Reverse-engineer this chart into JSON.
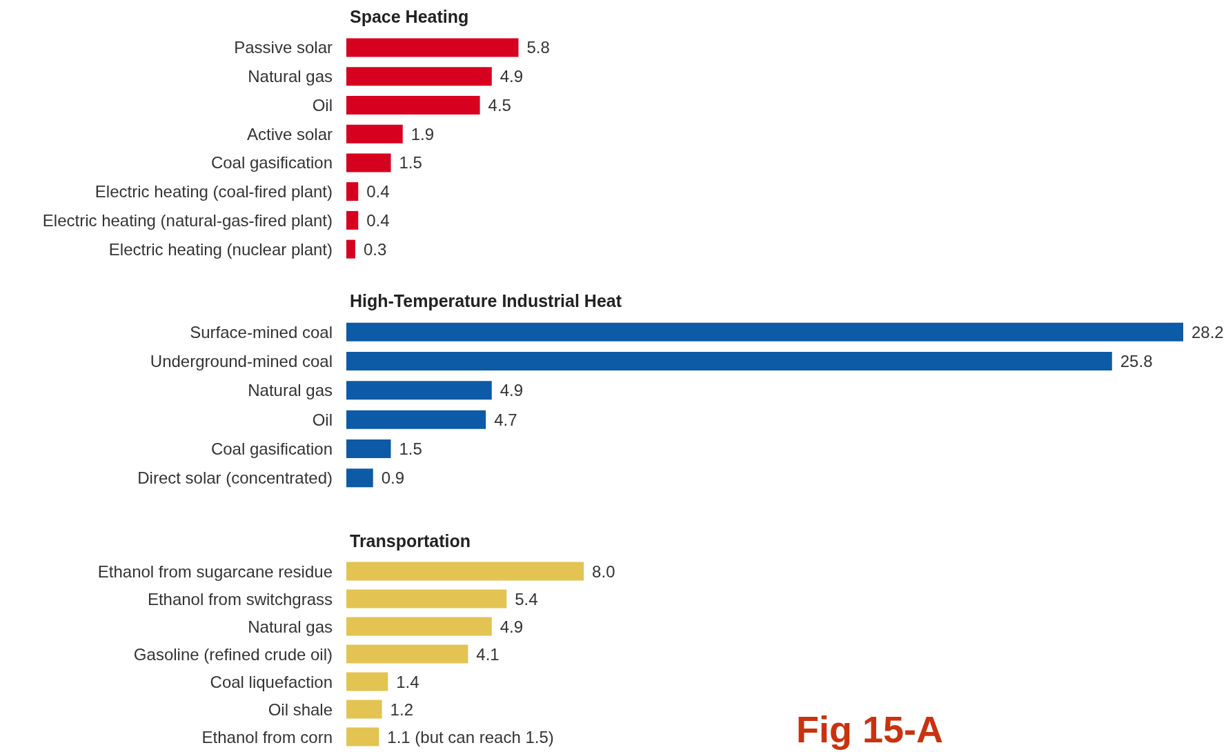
{
  "chart_data": [
    {
      "type": "bar",
      "orientation": "horizontal",
      "title": "Space Heating",
      "categories": [
        "Passive solar",
        "Natural gas",
        "Oil",
        "Active solar",
        "Coal gasification",
        "Electric heating (coal-fired plant)",
        "Electric heating (natural-gas-fired plant)",
        "Electric heating (nuclear plant)"
      ],
      "values": [
        5.8,
        4.9,
        4.5,
        1.9,
        1.5,
        0.4,
        0.4,
        0.3
      ],
      "value_labels": [
        "5.8",
        "4.9",
        "4.5",
        "1.9",
        "1.5",
        "0.4",
        "0.4",
        "0.3"
      ],
      "color": "#d7001e",
      "tick_labels": "y"
    },
    {
      "type": "bar",
      "orientation": "horizontal",
      "title": "High-Temperature Industrial Heat",
      "categories": [
        "Surface-mined coal",
        "Underground-mined coal",
        "Natural gas",
        "Oil",
        "Coal gasification",
        "Direct solar (concentrated)"
      ],
      "values": [
        28.2,
        25.8,
        4.9,
        4.7,
        1.5,
        0.9
      ],
      "value_labels": [
        "28.2",
        "25.8",
        "4.9",
        "4.7",
        "1.5",
        "0.9"
      ],
      "color": "#0d5aa7",
      "tick_labels": "y"
    },
    {
      "type": "bar",
      "orientation": "horizontal",
      "title": "Transportation",
      "categories": [
        "Ethanol from sugarcane residue",
        "Ethanol from switchgrass",
        "Natural gas",
        "Gasoline (refined crude oil)",
        "Coal liquefaction",
        "Oil shale",
        "Ethanol from corn"
      ],
      "values": [
        8.0,
        5.4,
        4.9,
        4.1,
        1.4,
        1.2,
        1.1
      ],
      "value_labels": [
        "8.0",
        "5.4",
        "4.9",
        "4.1",
        "1.4",
        "1.2",
        "1.1 (but can reach 1.5)"
      ],
      "color": "#e3c352",
      "tick_labels": "y",
      "annotations": [
        "Fig 15-A"
      ]
    }
  ]
}
